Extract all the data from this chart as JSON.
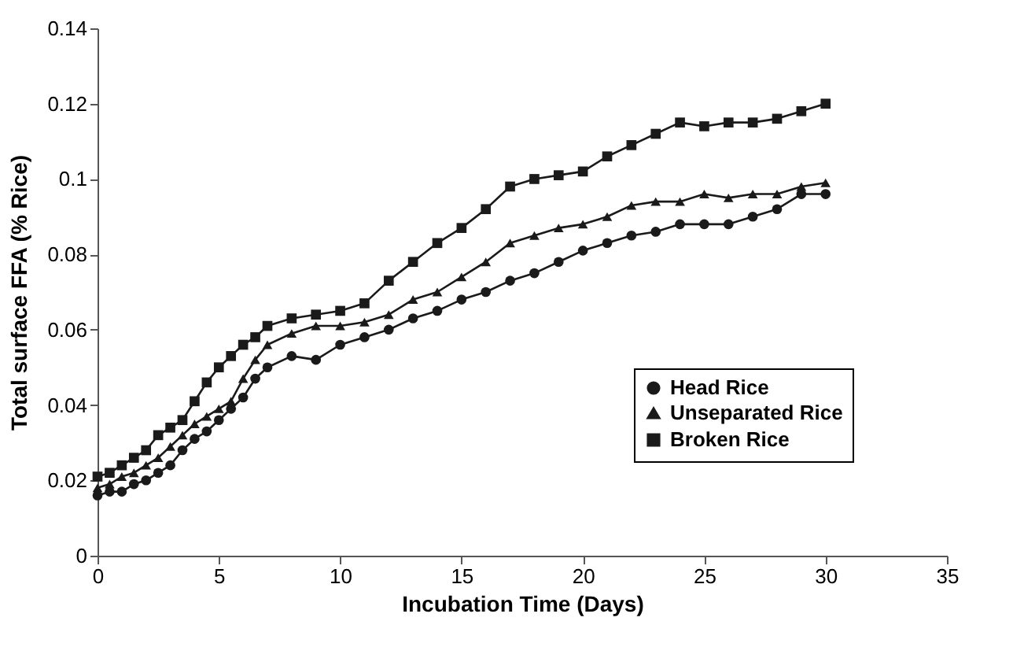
{
  "chart_data": {
    "type": "line",
    "xlabel": "Incubation Time (Days)",
    "ylabel": "Total surface FFA (% Rice)",
    "x": [
      0,
      0.5,
      1,
      1.5,
      2,
      2.5,
      3,
      3.5,
      4,
      4.5,
      5,
      5.5,
      6,
      6.5,
      7,
      8,
      9,
      10,
      11,
      12,
      13,
      14,
      15,
      16,
      17,
      18,
      19,
      20,
      21,
      22,
      23,
      24,
      25,
      26,
      27,
      28,
      29,
      30
    ],
    "series": [
      {
        "name": "Head Rice",
        "color": "#1a1a1a",
        "marker": "circle",
        "values": [
          0.016,
          0.017,
          0.017,
          0.019,
          0.02,
          0.022,
          0.024,
          0.028,
          0.031,
          0.033,
          0.036,
          0.039,
          0.042,
          0.047,
          0.05,
          0.053,
          0.052,
          0.056,
          0.058,
          0.06,
          0.063,
          0.065,
          0.068,
          0.07,
          0.073,
          0.075,
          0.078,
          0.081,
          0.083,
          0.085,
          0.086,
          0.088,
          0.088,
          0.088,
          0.09,
          0.092,
          0.096,
          0.096
        ]
      },
      {
        "name": "Unseparated Rice",
        "color": "#1a1a1a",
        "marker": "triangle",
        "values": [
          0.018,
          0.019,
          0.021,
          0.022,
          0.024,
          0.026,
          0.029,
          0.032,
          0.035,
          0.037,
          0.039,
          0.041,
          0.047,
          0.052,
          0.056,
          0.059,
          0.061,
          0.061,
          0.062,
          0.064,
          0.068,
          0.07,
          0.074,
          0.078,
          0.083,
          0.085,
          0.087,
          0.088,
          0.09,
          0.093,
          0.094,
          0.094,
          0.096,
          0.095,
          0.096,
          0.096,
          0.098,
          0.099
        ]
      },
      {
        "name": "Broken Rice",
        "color": "#1a1a1a",
        "marker": "square",
        "values": [
          0.021,
          0.022,
          0.024,
          0.026,
          0.028,
          0.032,
          0.034,
          0.036,
          0.041,
          0.046,
          0.05,
          0.053,
          0.056,
          0.058,
          0.061,
          0.063,
          0.064,
          0.065,
          0.067,
          0.073,
          0.078,
          0.083,
          0.087,
          0.092,
          0.098,
          0.1,
          0.101,
          0.102,
          0.106,
          0.109,
          0.112,
          0.115,
          0.114,
          0.115,
          0.115,
          0.116,
          0.118,
          0.12
        ]
      }
    ],
    "xlim": [
      0,
      35
    ],
    "xticks": [
      0,
      5,
      10,
      15,
      20,
      25,
      30,
      35
    ],
    "ylim": [
      0,
      0.14
    ],
    "yticks": [
      0,
      0.02,
      0.04,
      0.06,
      0.08,
      0.1,
      0.12,
      0.14
    ],
    "grid": false,
    "legend": "bottom right",
    "line_style": "solid"
  }
}
